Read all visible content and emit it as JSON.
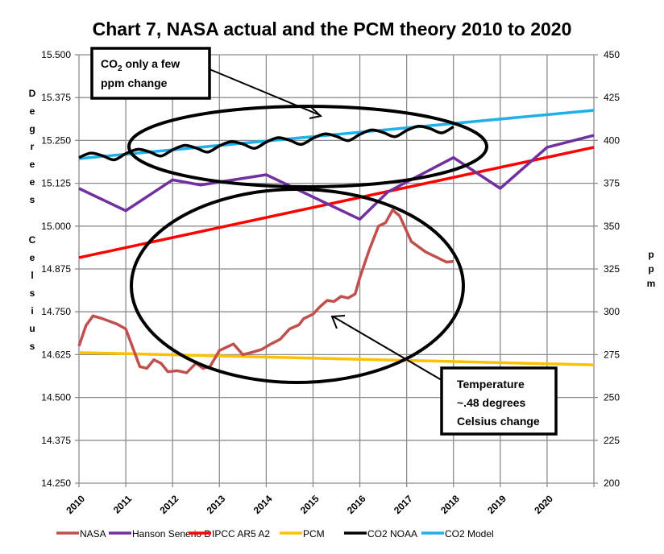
{
  "chart_data": {
    "type": "line",
    "title": "Chart 7, NASA actual and the PCM theory 2010 to 2020",
    "ylabel": "Degrees Celsius",
    "y2label": "ppm",
    "xlim": [
      2010,
      2021
    ],
    "ylim": [
      14.25,
      15.5
    ],
    "y2lim": [
      200,
      450
    ],
    "x_ticks": [
      "2010",
      "2011",
      "2012",
      "2013",
      "2014",
      "2015",
      "2016",
      "2017",
      "2018",
      "2019",
      "2020"
    ],
    "y_ticks": [
      "15.500",
      "15.375",
      "15.250",
      "15.125",
      "15.000",
      "14.875",
      "14.750",
      "14.625",
      "14.500",
      "14.375",
      "14.250"
    ],
    "y2_ticks": [
      "450",
      "425",
      "400",
      "375",
      "350",
      "325",
      "300",
      "275",
      "250",
      "225",
      "200"
    ],
    "grid": true,
    "legend_position": "bottom",
    "series": [
      {
        "name": "NASA",
        "axis": "left",
        "color": "#c0504d",
        "x": [
          2010,
          2010.15,
          2010.3,
          2010.5,
          2010.8,
          2011,
          2011.15,
          2011.3,
          2011.45,
          2011.6,
          2011.75,
          2011.9,
          2012.1,
          2012.3,
          2012.5,
          2012.65,
          2012.8,
          2013,
          2013.3,
          2013.5,
          2013.7,
          2013.9,
          2014.1,
          2014.3,
          2014.5,
          2014.7,
          2014.8,
          2015,
          2015.15,
          2015.3,
          2015.45,
          2015.6,
          2015.75,
          2015.9,
          2016,
          2016.2,
          2016.4,
          2016.55,
          2016.7,
          2016.85,
          2017.1,
          2017.4,
          2017.7,
          2017.85,
          2018
        ],
        "values": [
          14.65,
          14.71,
          14.738,
          14.73,
          14.715,
          14.7,
          14.645,
          14.59,
          14.585,
          14.61,
          14.6,
          14.575,
          14.578,
          14.572,
          14.6,
          14.585,
          14.59,
          14.637,
          14.656,
          14.625,
          14.632,
          14.64,
          14.656,
          14.67,
          14.7,
          14.712,
          14.73,
          14.743,
          14.765,
          14.783,
          14.78,
          14.795,
          14.79,
          14.802,
          14.85,
          14.93,
          15.0,
          15.01,
          15.047,
          15.03,
          14.955,
          14.925,
          14.905,
          14.895,
          14.897
        ]
      },
      {
        "name": "Hanson Senerio B",
        "axis": "left",
        "color": "#7030a0",
        "x": [
          2010,
          2011,
          2012,
          2012.6,
          2014,
          2016,
          2016.6,
          2018,
          2019,
          2020,
          2021
        ],
        "values": [
          15.11,
          15.045,
          15.135,
          15.12,
          15.15,
          15.02,
          15.1,
          15.2,
          15.11,
          15.23,
          15.265
        ]
      },
      {
        "name": "IPCC AR5 A2",
        "axis": "left",
        "color": "#ff0000",
        "x": [
          2010,
          2021
        ],
        "values": [
          14.908,
          15.23
        ]
      },
      {
        "name": "PCM",
        "axis": "left",
        "color": "#ffc000",
        "x": [
          2010,
          2021
        ],
        "values": [
          14.631,
          14.595
        ]
      },
      {
        "name": "CO2 NOAA",
        "axis": "right",
        "color": "#000000",
        "x": [
          2010,
          2010.25,
          2010.5,
          2010.75,
          2011,
          2011.25,
          2011.5,
          2011.75,
          2012,
          2012.25,
          2012.5,
          2012.75,
          2013,
          2013.25,
          2013.5,
          2013.75,
          2014,
          2014.25,
          2014.5,
          2014.75,
          2015,
          2015.25,
          2015.5,
          2015.75,
          2016,
          2016.25,
          2016.5,
          2016.75,
          2017,
          2017.25,
          2017.5,
          2017.75,
          2018
        ],
        "values": [
          390.0,
          392.6,
          391.1,
          388.7,
          392.3,
          394.8,
          393.4,
          390.9,
          394.5,
          397.1,
          395.6,
          393.2,
          396.8,
          399.3,
          397.9,
          395.4,
          399.0,
          401.6,
          400.1,
          397.7,
          401.3,
          403.8,
          402.4,
          399.9,
          403.5,
          406.1,
          404.6,
          402.2,
          405.8,
          408.3,
          406.9,
          404.4,
          408.0
        ]
      },
      {
        "name": "CO2 Model",
        "axis": "right",
        "color": "#1fb0e8",
        "x": [
          2010,
          2021
        ],
        "values": [
          389.4,
          417.6
        ]
      }
    ],
    "annotations": [
      {
        "text_line1": "CO",
        "text_sub": "2",
        "text_line1b": " only a few",
        "text_line2": "ppm change"
      },
      {
        "line1": "Temperature",
        "line2": "~.48 degrees",
        "line3": "Celsius change"
      }
    ]
  }
}
